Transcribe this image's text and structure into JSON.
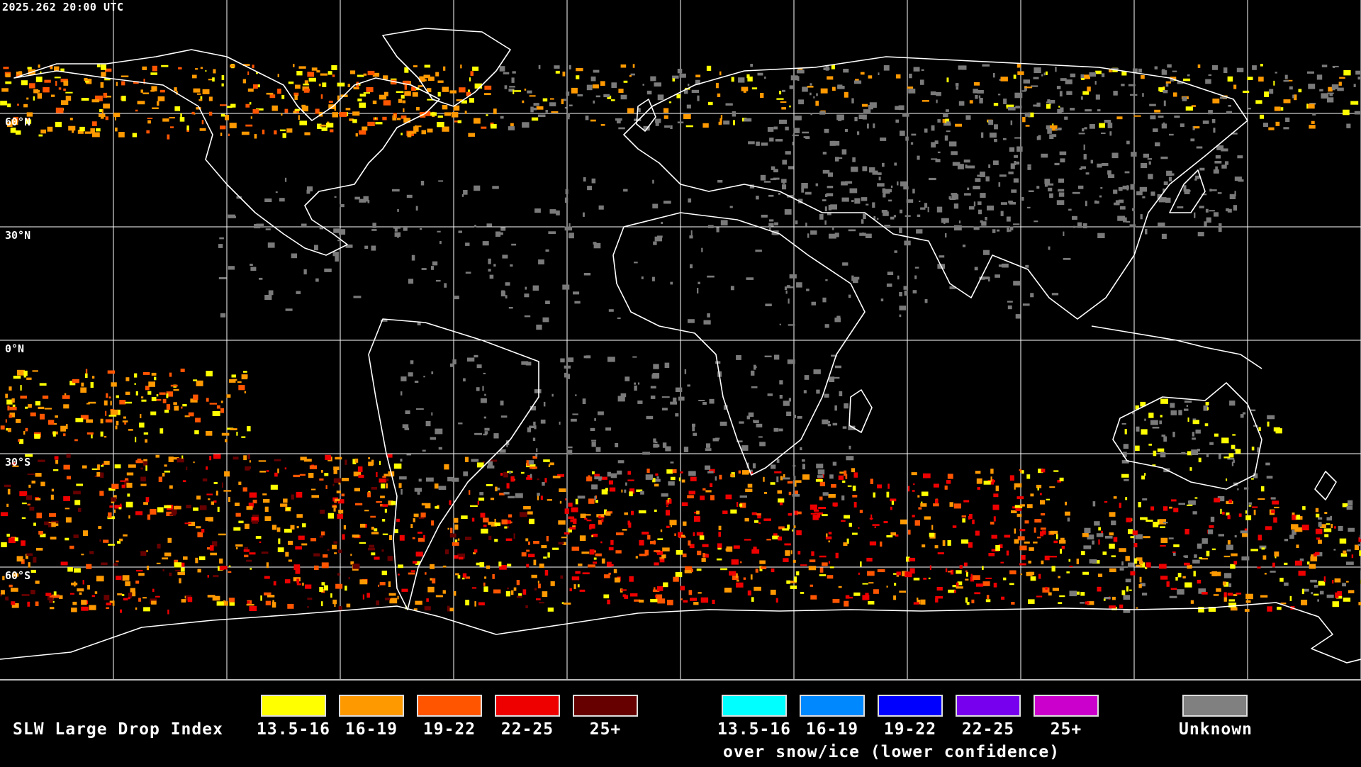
{
  "header": {
    "timestamp": "2025.262 20:00 UTC"
  },
  "map": {
    "lat_labels": [
      {
        "text": "60°N",
        "lat": 60
      },
      {
        "text": "30°N",
        "lat": 30
      },
      {
        "text": "0°N",
        "lat": 0
      },
      {
        "text": "30°S",
        "lat": -30
      },
      {
        "text": "60°S",
        "lat": -60
      }
    ],
    "colors": {
      "background": "#000000",
      "coastline": "#ffffff",
      "grid": "#ffffff"
    }
  },
  "legend": {
    "title": "SLW Large Drop Index",
    "primary": [
      {
        "label": "13.5-16",
        "color": "#ffff00"
      },
      {
        "label": "16-19",
        "color": "#ff9900"
      },
      {
        "label": "19-22",
        "color": "#ff5500"
      },
      {
        "label": "22-25",
        "color": "#ee0000"
      },
      {
        "label": "25+",
        "color": "#660000"
      }
    ],
    "snow_ice": [
      {
        "label": "13.5-16",
        "color": "#00ffff"
      },
      {
        "label": "16-19",
        "color": "#0088ff"
      },
      {
        "label": "19-22",
        "color": "#0000ff"
      },
      {
        "label": "22-25",
        "color": "#7700ee"
      },
      {
        "label": "25+",
        "color": "#cc00cc"
      }
    ],
    "snow_ice_note": "over snow/ice (lower confidence)",
    "unknown": {
      "label": "Unknown",
      "color": "#808080"
    }
  }
}
